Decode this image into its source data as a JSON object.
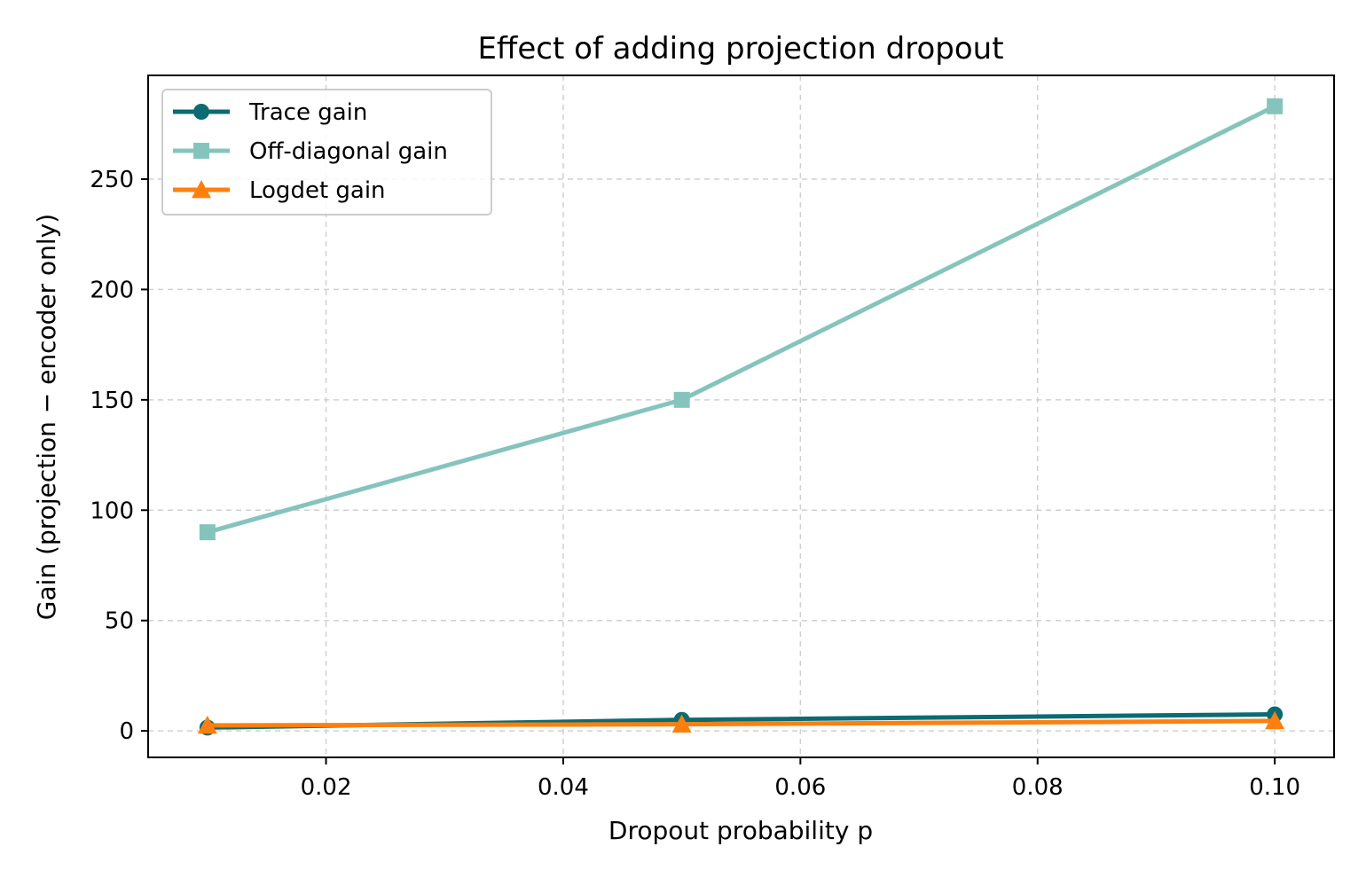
{
  "chart_data": {
    "type": "line",
    "title": "Effect of adding projection dropout",
    "xlabel": "Dropout probability p",
    "ylabel": "Gain (projection − encoder only)",
    "x": [
      0.01,
      0.05,
      0.1
    ],
    "xlim": [
      0.005,
      0.105
    ],
    "ylim": [
      -12,
      297
    ],
    "xticks": [
      0.02,
      0.04,
      0.06,
      0.08,
      0.1
    ],
    "xtick_labels": [
      "0.02",
      "0.04",
      "0.06",
      "0.08",
      "0.10"
    ],
    "yticks": [
      0,
      50,
      100,
      150,
      200,
      250
    ],
    "ytick_labels": [
      "0",
      "50",
      "100",
      "150",
      "200",
      "250"
    ],
    "grid": true,
    "legend_position": "top-left",
    "series": [
      {
        "name": "Trace gain",
        "values": [
          1.5,
          5,
          7.5
        ],
        "color": "#0b6b72",
        "marker": "circle"
      },
      {
        "name": "Off-diagonal gain",
        "values": [
          90,
          150,
          283
        ],
        "color": "#85c4bd",
        "marker": "square"
      },
      {
        "name": "Logdet gain",
        "values": [
          2.5,
          3,
          4.5
        ],
        "color": "#ff7f0e",
        "marker": "triangle"
      }
    ]
  }
}
